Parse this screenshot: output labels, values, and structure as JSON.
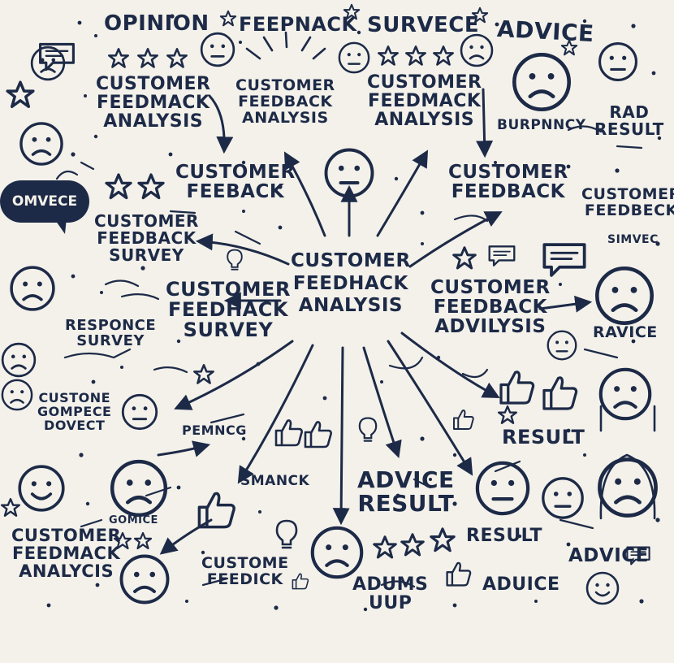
{
  "colors": {
    "ink": "#1d2a47",
    "paper": "#f3f1ea"
  },
  "words": {
    "opinion": "OPINION",
    "feepnack": "FEEPNACK",
    "survece": "SURVECE",
    "advice_top": "ADVICE",
    "analysis_block_1": "CUSTOMER\nFEEDMACK\nANALYSIS",
    "analysis_block_2": "CUSTOMER\nFEEDBACK\nANALYSIS",
    "analysis_block_3": "CUSTOMER\nFEEDMACK\nANALYSIS",
    "burpnncy": "BURPNNCY",
    "rad_result": "RAD\nRESULT",
    "bubble": "OMVECE",
    "feedback_mid_left": "CUSTOMER\nFEEBACK",
    "feedback_mid_right": "CUSTOMER\nFEEDBACK",
    "feedbeck_right": "CUSTOMER\nFEEDBECK",
    "simvec": "SIMVEC",
    "survey_left": "CUSTOMER\nFEEDBACK\nSURVEY",
    "center": "CUSTOMER\nFEEDHACK\nANALYSIS",
    "survey_center_left": "CUSTOMER\nFEEDHACK\nSURVEY",
    "advilysis_right": "CUSTOMER\nFEEDBACK\nADVILYSIS",
    "responce": "RESPONCE\nSURVEY",
    "ravice": "RAVICE",
    "custone": "CUSTONE\nGOMPECE\nDOVECT",
    "pemncg": "PEMNCG",
    "result_right": "RESULT",
    "smanck": "SMANCK",
    "advice_result": "ADVICE\nRESULT",
    "gomice": "GOMICE",
    "result_bottom": "RESULT",
    "customer_analysis_bottom": "CUSTOMER\nFEEDMACK\nANALYCIS",
    "custome_feedick": "CUSTOME\nFEEDICK",
    "adums_uup": "ADUMS\nUUP",
    "advice_bottom": "ADUICE",
    "advice_right": "ADVICE"
  },
  "icons": [
    "star-icon",
    "speech-bubble-icon",
    "sad-face-icon",
    "neutral-face-icon",
    "happy-face-icon",
    "thumbs-up-icon",
    "lightbulb-icon",
    "arrow-icon"
  ]
}
